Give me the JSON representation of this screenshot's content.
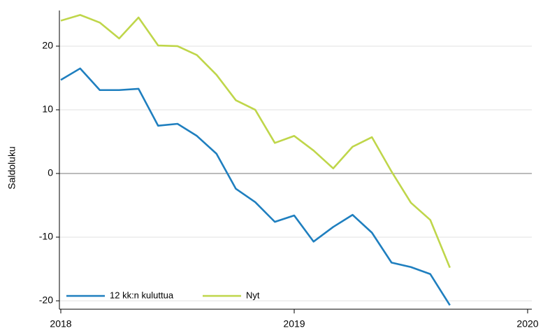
{
  "chart_data": {
    "type": "line",
    "ylabel": "Saldoluku",
    "x": [
      2018,
      2018.083,
      2018.167,
      2018.25,
      2018.333,
      2018.417,
      2018.5,
      2018.583,
      2018.667,
      2018.75,
      2018.833,
      2018.917,
      2019,
      2019.083,
      2019.167,
      2019.25,
      2019.333,
      2019.417,
      2019.5,
      2019.583,
      2019.667
    ],
    "series": [
      {
        "name": "12 kk:n kuluttua",
        "color": "#1f7fbf",
        "values": [
          14.7,
          16.5,
          13.1,
          13.1,
          13.3,
          7.5,
          7.8,
          5.9,
          3.1,
          -2.4,
          -4.5,
          -7.6,
          -6.6,
          -10.7,
          -8.4,
          -6.5,
          -9.3,
          -14.0,
          -14.7,
          -15.8,
          -20.7
        ]
      },
      {
        "name": "Nyt",
        "color": "#bfd64a",
        "values": [
          24.0,
          24.9,
          23.7,
          21.2,
          24.5,
          20.1,
          20.0,
          18.6,
          15.5,
          11.5,
          10.0,
          4.8,
          5.9,
          3.6,
          0.8,
          4.2,
          5.7,
          0.3,
          -4.6,
          -7.3,
          -14.8
        ]
      }
    ],
    "xlim": [
      2017.994,
      2020.018
    ],
    "xticks": [
      2018,
      2019,
      2020
    ],
    "ylim": [
      -21.1,
      25.6
    ],
    "yticks": [
      -20,
      -10,
      0,
      10,
      20
    ],
    "grid": true,
    "legend": "lower left"
  }
}
